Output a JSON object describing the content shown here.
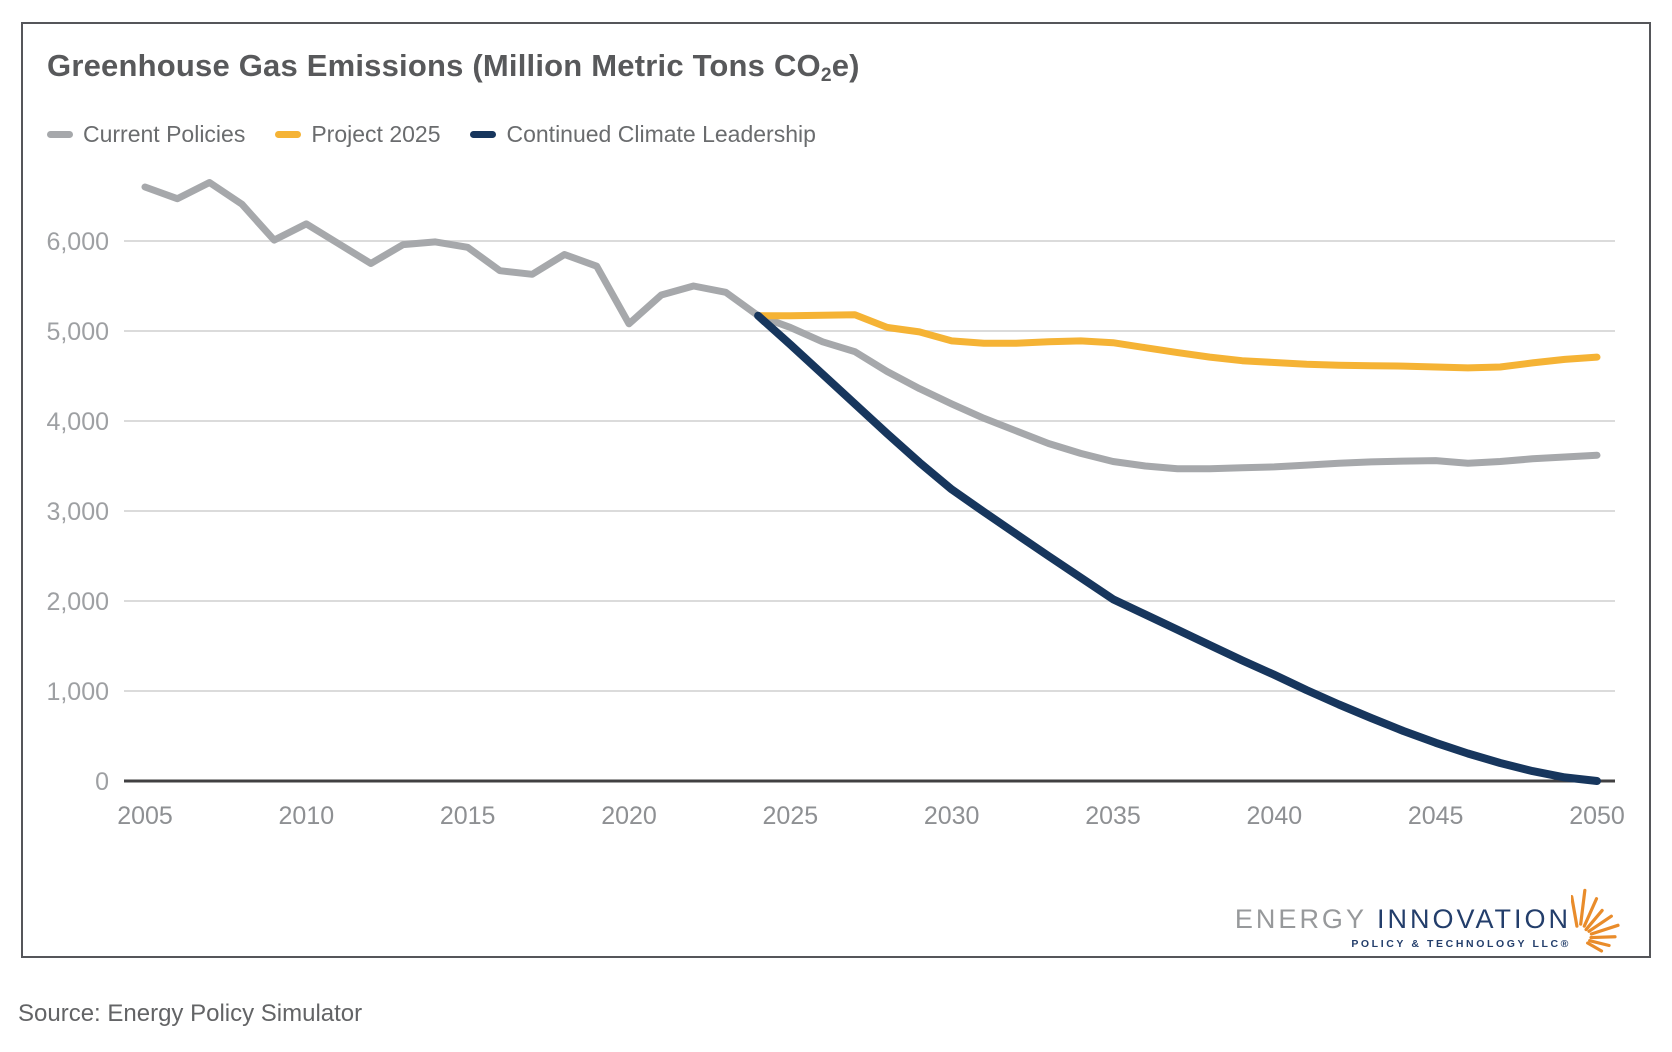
{
  "card": {
    "title": {
      "pre": "Greenhouse Gas Emissions (Million Metric Tons CO",
      "sub": "2",
      "post": "e)"
    },
    "legend": [
      {
        "label": "Current Policies",
        "color": "#a6a8ab"
      },
      {
        "label": "Project 2025",
        "color": "#f5b335"
      },
      {
        "label": "Continued Climate Leadership",
        "color": "#17365d"
      }
    ],
    "logo": {
      "word1": "ENERGY",
      "word2": "INNOVATION",
      "subtext": "POLICY & TECHNOLOGY LLC®",
      "word1_color": "#97999b",
      "word2_color": "#233e6b",
      "burst_color": "#e98c2b"
    }
  },
  "source_note": "Source: Energy Policy Simulator",
  "chart_data": {
    "type": "line",
    "title": "Greenhouse Gas Emissions (Million Metric Tons CO2e)",
    "xlabel": "",
    "ylabel": "",
    "xlim": [
      2005,
      2050
    ],
    "ylim": [
      0,
      6800
    ],
    "grid": "horizontal-only",
    "legend_position": "top-left",
    "x_ticks": [
      2005,
      2010,
      2015,
      2020,
      2025,
      2030,
      2035,
      2040,
      2045,
      2050
    ],
    "y_ticks": [
      0,
      1000,
      2000,
      3000,
      4000,
      5000,
      6000
    ],
    "y_tick_labels": [
      "0",
      "1,000",
      "2,000",
      "3,000",
      "4,000",
      "5,000",
      "6,000"
    ],
    "axis_color": "#414042",
    "gridline_color": "#dbdbdb",
    "x_tick_color": "#8e9093",
    "y_tick_color": "#9ea0a3",
    "series": [
      {
        "name": "Current Policies",
        "color": "#a6a8ab",
        "width": 7,
        "x": [
          2005,
          2006,
          2007,
          2008,
          2009,
          2010,
          2011,
          2012,
          2013,
          2014,
          2015,
          2016,
          2017,
          2018,
          2019,
          2020,
          2021,
          2022,
          2023,
          2024,
          2025,
          2026,
          2027,
          2028,
          2029,
          2030,
          2031,
          2032,
          2033,
          2034,
          2035,
          2036,
          2037,
          2038,
          2039,
          2040,
          2041,
          2042,
          2043,
          2044,
          2045,
          2046,
          2047,
          2048,
          2049,
          2050
        ],
        "values": [
          6600,
          6470,
          6650,
          6410,
          6010,
          6190,
          5970,
          5750,
          5960,
          5990,
          5930,
          5670,
          5630,
          5850,
          5720,
          5080,
          5400,
          5500,
          5430,
          5170,
          5040,
          4880,
          4770,
          4550,
          4360,
          4190,
          4030,
          3890,
          3750,
          3640,
          3550,
          3500,
          3470,
          3470,
          3480,
          3490,
          3510,
          3530,
          3545,
          3555,
          3560,
          3530,
          3550,
          3580,
          3600,
          3620
        ]
      },
      {
        "name": "Project 2025",
        "color": "#f5b335",
        "width": 7,
        "x": [
          2024,
          2025,
          2026,
          2027,
          2028,
          2029,
          2030,
          2031,
          2032,
          2033,
          2034,
          2035,
          2036,
          2037,
          2038,
          2039,
          2040,
          2041,
          2042,
          2043,
          2044,
          2045,
          2046,
          2047,
          2048,
          2049,
          2050
        ],
        "values": [
          5170,
          5170,
          5175,
          5180,
          5040,
          4990,
          4890,
          4865,
          4865,
          4880,
          4890,
          4870,
          4815,
          4760,
          4710,
          4670,
          4650,
          4630,
          4620,
          4615,
          4610,
          4600,
          4590,
          4600,
          4645,
          4685,
          4710
        ]
      },
      {
        "name": "Continued Climate Leadership",
        "color": "#17365d",
        "width": 8,
        "x": [
          2024,
          2025,
          2026,
          2027,
          2028,
          2029,
          2030,
          2031,
          2032,
          2033,
          2034,
          2035,
          2036,
          2037,
          2038,
          2039,
          2040,
          2041,
          2042,
          2043,
          2044,
          2045,
          2046,
          2047,
          2048,
          2049,
          2050
        ],
        "values": [
          5170,
          4850,
          4520,
          4190,
          3860,
          3540,
          3240,
          2990,
          2745,
          2500,
          2260,
          2020,
          1850,
          1680,
          1510,
          1340,
          1180,
          1010,
          850,
          700,
          555,
          425,
          305,
          200,
          110,
          40,
          0
        ]
      }
    ]
  }
}
